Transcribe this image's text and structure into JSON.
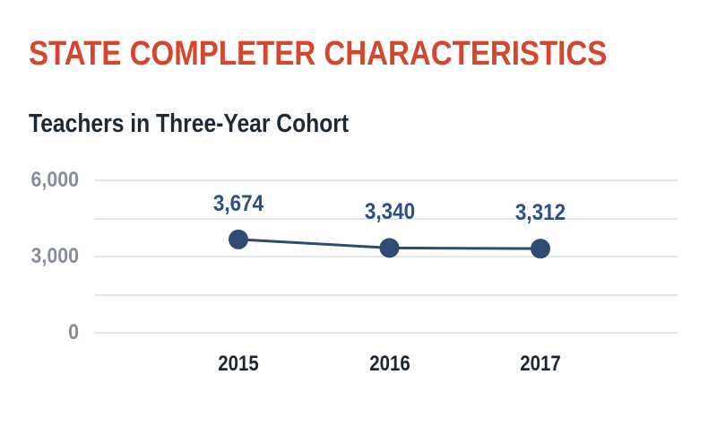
{
  "page": {
    "title": "STATE COMPLETER CHARACTERISTICS"
  },
  "colors": {
    "title_red": "#d4462e",
    "subtitle_dark": "#1f2933",
    "series_navy": "#2e4b72",
    "data_label_blue": "#2d5082",
    "axis_label_gray": "#878e99",
    "x_label_dark": "#1c2530",
    "gridline": "#e3e7ea",
    "background": "#ffffff"
  },
  "chart_data": {
    "type": "line",
    "title": "Teachers in Three-Year Cohort",
    "categories": [
      "2015",
      "2016",
      "2017"
    ],
    "values": [
      3674,
      3340,
      3312
    ],
    "value_labels": [
      "3,674",
      "3,340",
      "3,312"
    ],
    "xlabel": "",
    "ylabel": "",
    "ylim": [
      0,
      6000
    ],
    "y_grid_step": 1500,
    "y_tick_labels": [
      {
        "value": 0,
        "label": "0"
      },
      {
        "value": 3000,
        "label": "3,000"
      },
      {
        "value": 6000,
        "label": "6,000"
      }
    ],
    "grid": "horizontal",
    "legend": "none",
    "marker": "circle",
    "data_labels_position": "above"
  }
}
